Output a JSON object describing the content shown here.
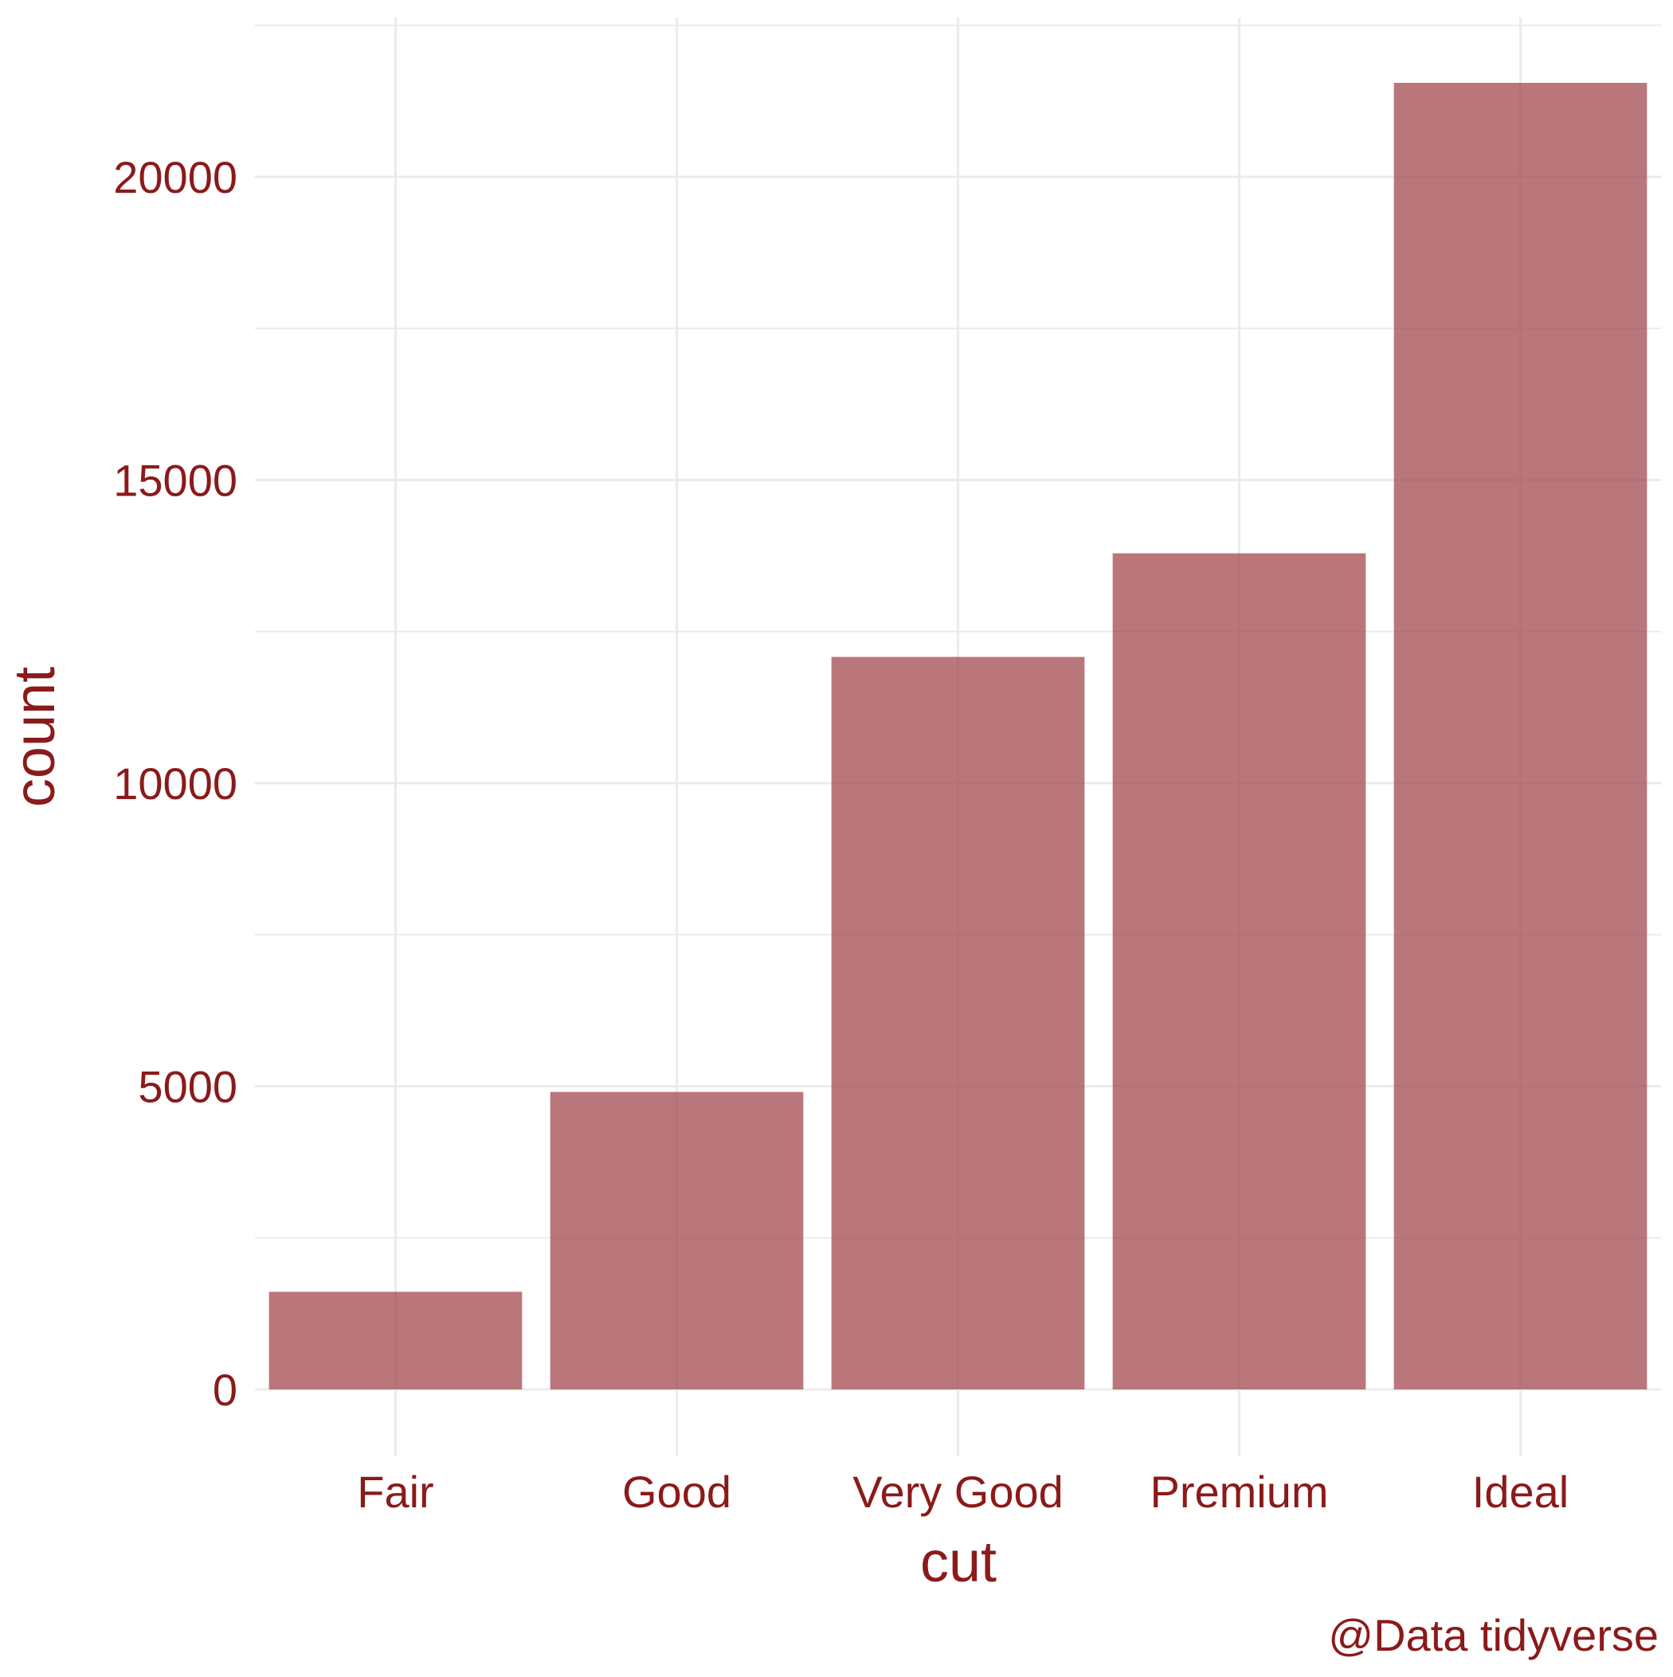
{
  "colors": {
    "text": "#8B1A1A",
    "bar": "#A34A4F",
    "grid_major": "#EBEBEB",
    "grid_minor": "#F3F3F3",
    "background": "#FFFFFF"
  },
  "chart_data": {
    "type": "bar",
    "categories": [
      "Fair",
      "Good",
      "Very Good",
      "Premium",
      "Ideal"
    ],
    "values": [
      1610,
      4906,
      12082,
      13791,
      21551
    ],
    "title": "",
    "xlabel": "cut",
    "ylabel": "count",
    "caption": "@Data tidyverse",
    "ylim": [
      -2000,
      22600
    ],
    "yticks": [
      0,
      5000,
      10000,
      15000,
      20000
    ],
    "ytick_labels": [
      "0",
      "5000",
      "10000",
      "15000",
      "20000"
    ],
    "grid": true,
    "legend": "none"
  }
}
